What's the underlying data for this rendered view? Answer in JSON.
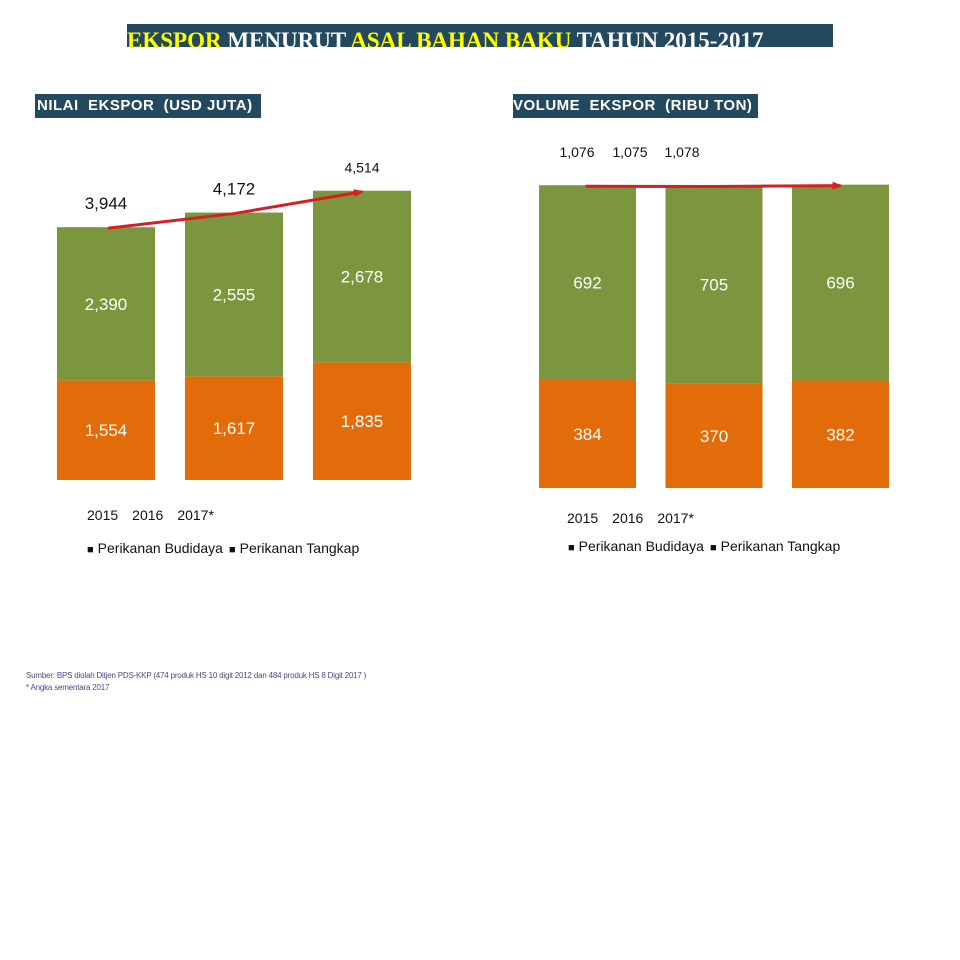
{
  "title": {
    "part1": "EKSPOR",
    "part2": " MENURUT ",
    "part3": "ASAL BAHAN BAKU",
    "part4": " TAHUN 2015-2017"
  },
  "colors": {
    "budidaya": "#7b963f",
    "tangkap": "#e36c0a",
    "trend": "#d42020",
    "label_bg": "#24495e",
    "title_highlight": "#ffff00"
  },
  "chart_data": [
    {
      "type": "bar",
      "stacked": true,
      "panel_label": "NILAI  EKSPOR  (USD JUTA)",
      "categories": [
        "2015",
        "2016",
        "2017*"
      ],
      "series": [
        {
          "name": "Perikanan Budidaya",
          "values": [
            2390,
            2555,
            2678
          ]
        },
        {
          "name": "Perikanan Tangkap",
          "values": [
            1554,
            1617,
            1835
          ]
        }
      ],
      "data_labels": {
        "budidaya": [
          "2,390",
          "2,555",
          "2,678"
        ],
        "tangkap": [
          "1,554",
          "1,617",
          "1,835"
        ],
        "totals": [
          "3,944",
          "4,172",
          "4,514"
        ]
      },
      "totals": [
        3944,
        4172,
        4514
      ],
      "trend_arrow": true,
      "legend": [
        "Perikanan Budidaya",
        "Perikanan Tangkap"
      ],
      "legend_position": "bottom"
    },
    {
      "type": "bar",
      "stacked": true,
      "panel_label": "VOLUME  EKSPOR  (RIBU TON)",
      "categories": [
        "2015",
        "2016",
        "2017*"
      ],
      "series": [
        {
          "name": "Perikanan Budidaya",
          "values": [
            692,
            705,
            696
          ]
        },
        {
          "name": "Perikanan Tangkap",
          "values": [
            384,
            370,
            382
          ]
        }
      ],
      "data_labels": {
        "budidaya": [
          "692",
          "705",
          "696"
        ],
        "tangkap": [
          "384",
          "370",
          "382"
        ],
        "totals": [
          "1,076",
          "1,075",
          "1,078"
        ]
      },
      "totals": [
        1076,
        1075,
        1078
      ],
      "trend_arrow": true,
      "legend": [
        "Perikanan Budidaya",
        "Perikanan Tangkap"
      ],
      "legend_position": "bottom"
    }
  ],
  "legend": {
    "marker": "■",
    "budidaya": "Perikanan Budidaya",
    "tangkap": "Perikanan Tangkap"
  },
  "footnotes": {
    "source": "Sumber: BPS diolah Ditjen PDS-KKP (474 produk HS 10 digit 2012 dan 484 produk HS 8 Digit 2017 )",
    "note": "* Angka sementara 2017"
  }
}
